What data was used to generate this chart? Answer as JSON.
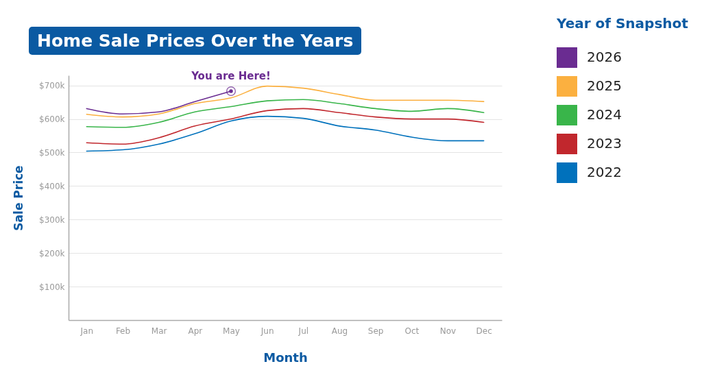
{
  "chart_data": {
    "type": "line",
    "title": "Home Sale Prices Over the Years",
    "xlabel": "Month",
    "ylabel": "Sale Price",
    "legend_title": "Year of Snapshot",
    "categories": [
      "Jan",
      "Feb",
      "Mar",
      "Apr",
      "May",
      "Jun",
      "Jul",
      "Aug",
      "Sep",
      "Oct",
      "Nov",
      "Dec"
    ],
    "series": [
      {
        "name": "2026",
        "color": "#6a2c91",
        "values": [
          631,
          615,
          621,
          652,
          683,
          null,
          null,
          null,
          null,
          null,
          null,
          null
        ]
      },
      {
        "name": "2025",
        "color": "#fbb040",
        "values": [
          614,
          606,
          615,
          646,
          663,
          698,
          692,
          673,
          656,
          656,
          656,
          652
        ]
      },
      {
        "name": "2024",
        "color": "#39b54a",
        "values": [
          577,
          575,
          590,
          621,
          637,
          654,
          658,
          646,
          631,
          623,
          631,
          619
        ]
      },
      {
        "name": "2023",
        "color": "#c1272d",
        "values": [
          529,
          525,
          544,
          579,
          600,
          625,
          631,
          619,
          606,
          600,
          600,
          590
        ]
      },
      {
        "name": "2022",
        "color": "#0071bc",
        "values": [
          504,
          508,
          525,
          556,
          594,
          608,
          602,
          579,
          567,
          546,
          535,
          535
        ]
      }
    ],
    "annotations": [
      {
        "text": "You are Here!",
        "x": "May",
        "y": 683
      }
    ],
    "ylim": [
      0,
      730
    ],
    "yticks": [
      {
        "value": 100,
        "label": "$100k"
      },
      {
        "value": 200,
        "label": "$200k"
      },
      {
        "value": 300,
        "label": "$300k"
      },
      {
        "value": 400,
        "label": "$400k"
      },
      {
        "value": 500,
        "label": "$500k"
      },
      {
        "value": 600,
        "label": "$600k"
      },
      {
        "value": 700,
        "label": "$700k"
      }
    ],
    "grid": "y",
    "legend": "right",
    "marker": "none",
    "line_style": "solid"
  }
}
